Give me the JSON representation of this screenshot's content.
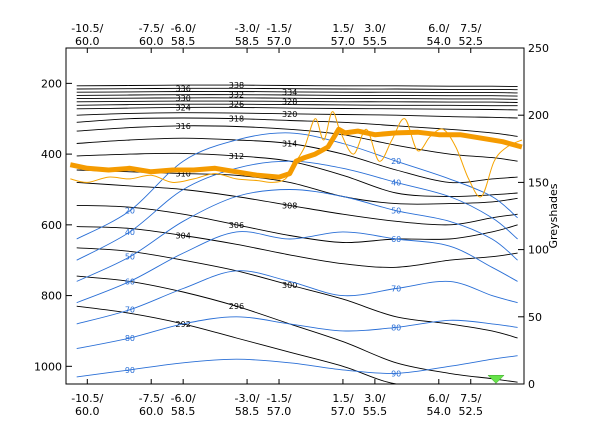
{
  "chart_data": {
    "type": "contour",
    "xlim": [
      -11.5,
      10.0
    ],
    "x_ticks": [
      {
        "x": -10.5,
        "line1": "-10.5/",
        "line2": "60.0"
      },
      {
        "x": -7.5,
        "line1": "-7.5/",
        "line2": "60.0"
      },
      {
        "x": -6.0,
        "line1": "-6.0/",
        "line2": "58.5"
      },
      {
        "x": -3.0,
        "line1": "-3.0/",
        "line2": "58.5"
      },
      {
        "x": -1.5,
        "line1": "-1.5/",
        "line2": "57.0"
      },
      {
        "x": 1.5,
        "line1": "1.5/",
        "line2": "57.0"
      },
      {
        "x": 3.0,
        "line1": "3.0/",
        "line2": "55.5"
      },
      {
        "x": 6.0,
        "line1": "6.0/",
        "line2": "54.0"
      },
      {
        "x": 7.5,
        "line1": "7.5/",
        "line2": "52.5"
      }
    ],
    "left_axis": {
      "ylim": [
        1050,
        100
      ],
      "ticks": [
        "200",
        "400",
        "600",
        "800",
        "1000"
      ],
      "tick_values": [
        200,
        400,
        600,
        800,
        1000
      ]
    },
    "right_axis": {
      "label": "Greyshades",
      "ylim": [
        0,
        250
      ],
      "ticks": [
        "0",
        "50",
        "100",
        "150",
        "200",
        "250"
      ],
      "tick_values": [
        0,
        50,
        100,
        150,
        200,
        250
      ]
    },
    "theta_labels": [
      "292",
      "296",
      "300",
      "304",
      "306",
      "308",
      "310",
      "312",
      "314",
      "316",
      "318",
      "320",
      "332",
      "334"
    ],
    "humidity_labels": [
      "20",
      "40",
      "50",
      "60",
      "70",
      "80",
      "90"
    ],
    "theta_isolines": [
      {
        "label": "292",
        "y": [
          830,
          850,
          880,
          920,
          960,
          1000,
          1050,
          1050,
          1050,
          1050
        ]
      },
      {
        "label": "296",
        "y": [
          745,
          760,
          790,
          830,
          880,
          930,
          990,
          1020,
          1035,
          1045
        ]
      },
      {
        "label": "300",
        "y": [
          665,
          675,
          700,
          730,
          770,
          810,
          860,
          880,
          900,
          920
        ]
      },
      {
        "label": "304",
        "y": [
          605,
          610,
          630,
          655,
          685,
          710,
          720,
          700,
          690,
          680
        ]
      },
      {
        "label": "306",
        "y": [
          545,
          550,
          570,
          600,
          630,
          650,
          640,
          640,
          620,
          600
        ]
      },
      {
        "label": "308",
        "y": [
          480,
          490,
          500,
          520,
          545,
          570,
          590,
          600,
          580,
          570
        ]
      },
      {
        "label": "310",
        "y": [
          445,
          450,
          455,
          460,
          480,
          520,
          540,
          540,
          535,
          525
        ]
      },
      {
        "label": "312",
        "y": [
          405,
          400,
          398,
          405,
          420,
          460,
          510,
          520,
          515,
          510
        ]
      },
      {
        "label": "314",
        "y": [
          370,
          360,
          355,
          360,
          370,
          400,
          445,
          480,
          470,
          465
        ]
      },
      {
        "label": "316",
        "y": [
          335,
          325,
          320,
          322,
          330,
          345,
          375,
          400,
          410,
          420
        ]
      },
      {
        "label": "318",
        "y": [
          310,
          300,
          298,
          300,
          305,
          310,
          320,
          330,
          340,
          350
        ]
      },
      {
        "label": "320",
        "y": [
          290,
          285,
          283,
          284,
          286,
          288,
          290,
          294,
          296,
          298
        ]
      },
      {
        "label": "324",
        "y": [
          272,
          270,
          268,
          268,
          270,
          271,
          272,
          273,
          274,
          275
        ]
      },
      {
        "label": "326",
        "y": [
          262,
          260,
          259,
          259,
          260,
          261,
          262,
          262,
          263,
          263
        ]
      },
      {
        "label": "328",
        "y": [
          252,
          251,
          250,
          250,
          251,
          252,
          252,
          253,
          253,
          254
        ]
      },
      {
        "label": "330",
        "y": [
          243,
          242,
          241,
          241,
          242,
          243,
          243,
          244,
          244,
          245
        ]
      },
      {
        "label": "332",
        "y": [
          234,
          233,
          232,
          232,
          233,
          234,
          234,
          235,
          235,
          236
        ]
      },
      {
        "label": "334",
        "y": [
          225,
          224,
          223,
          223,
          224,
          225,
          225,
          226,
          226,
          227
        ]
      },
      {
        "label": "336",
        "y": [
          216,
          215,
          214,
          214,
          215,
          216,
          216,
          217,
          217,
          218
        ]
      },
      {
        "label": "338",
        "y": [
          207,
          206,
          205,
          205,
          206,
          207,
          207,
          208,
          208,
          209
        ]
      }
    ],
    "humidity_isolines": [
      {
        "label": "90",
        "y": [
          1030,
          1010,
          990,
          980,
          990,
          1010,
          1020,
          1000,
          980,
          970
        ]
      },
      {
        "label": "80",
        "y": [
          950,
          920,
          880,
          860,
          880,
          900,
          890,
          870,
          880,
          890
        ]
      },
      {
        "label": "70",
        "y": [
          880,
          840,
          780,
          730,
          760,
          800,
          780,
          760,
          800,
          820
        ]
      },
      {
        "label": "60",
        "y": [
          820,
          760,
          680,
          620,
          640,
          620,
          640,
          660,
          720,
          760
        ]
      },
      {
        "label": "50",
        "y": [
          760,
          690,
          590,
          520,
          500,
          520,
          560,
          590,
          640,
          700
        ]
      },
      {
        "label": "40",
        "y": [
          700,
          620,
          500,
          440,
          420,
          440,
          480,
          520,
          580,
          640
        ]
      },
      {
        "label": "20",
        "y": [
          640,
          560,
          420,
          360,
          340,
          370,
          420,
          470,
          520,
          580
        ]
      }
    ],
    "humidity_x": [
      -11.0,
      -8.5,
      -6.0,
      -3.5,
      -1.0,
      1.5,
      4.0,
      6.5,
      8.5,
      9.7
    ],
    "theta_x": [
      -11.0,
      -8.5,
      -6.0,
      -3.5,
      -1.0,
      1.5,
      4.0,
      6.5,
      8.5,
      9.7
    ],
    "tropopause_thick": {
      "x": [
        -11.3,
        -10.5,
        -9.5,
        -8.5,
        -7.5,
        -6.5,
        -5.5,
        -4.5,
        -3.5,
        -2.5,
        -1.5,
        -1.0,
        -0.7,
        -0.3,
        0.2,
        0.8,
        1.3,
        1.6,
        2.2,
        3.0,
        4.0,
        5.0,
        6.0,
        7.0,
        8.0,
        9.0,
        9.9
      ],
      "y": [
        430,
        440,
        445,
        440,
        450,
        445,
        445,
        440,
        450,
        460,
        465,
        455,
        420,
        410,
        400,
        380,
        330,
        340,
        335,
        345,
        340,
        338,
        345,
        345,
        355,
        365,
        380
      ]
    },
    "tropopause_thin": {
      "x": [
        -11.3,
        -10.5,
        -9.5,
        -8.5,
        -7.5,
        -6.5,
        -5.5,
        -4.5,
        -3.5,
        -2.5,
        -1.8,
        -1.2,
        -0.8,
        -0.3,
        0.2,
        0.6,
        1.0,
        1.4,
        2.0,
        2.6,
        3.2,
        3.8,
        4.4,
        5.0,
        5.6,
        6.2,
        6.8,
        7.4,
        8.0,
        8.6,
        9.2,
        9.9
      ],
      "y": [
        470,
        480,
        465,
        470,
        460,
        480,
        470,
        455,
        470,
        475,
        480,
        470,
        430,
        380,
        300,
        360,
        280,
        340,
        400,
        330,
        420,
        360,
        300,
        390,
        350,
        330,
        380,
        470,
        520,
        420,
        380,
        360
      ]
    },
    "marker_greyshade": 2
  }
}
